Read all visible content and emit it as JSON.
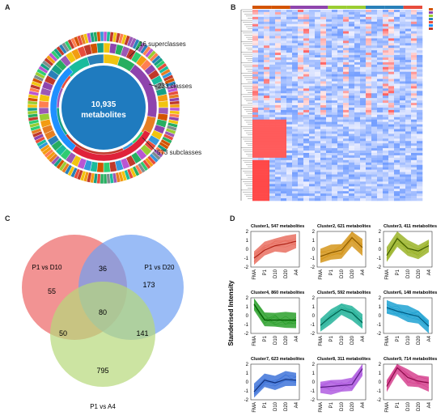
{
  "panels": {
    "a": {
      "label": "A",
      "center_count": "10,935",
      "center_unit": "metabolites",
      "annotations": [
        "16 superclasses",
        "233 classes",
        "573 subclasses"
      ],
      "colors": {
        "center": "#1f7bbf"
      }
    },
    "b": {
      "label": "B"
    },
    "c": {
      "label": "C",
      "sets": [
        {
          "name": "P1 vs D10",
          "color": "#f08080"
        },
        {
          "name": "P1 vs D20",
          "color": "#6fa0f2"
        },
        {
          "name": "P1 vs A4",
          "color": "#b7d97a"
        }
      ],
      "counts": {
        "only_d10": "55",
        "only_d20": "173",
        "only_a4": "795",
        "d10_d20": "36",
        "d10_a4": "50",
        "d20_a4": "141",
        "all": "80"
      }
    },
    "d": {
      "label": "D",
      "y_axis_label": "Standerised Intensity",
      "x_ticks": [
        "FMA",
        "P1",
        "D10",
        "D20",
        "A4"
      ],
      "y_ticks": [
        "2",
        "1",
        "0",
        "-1",
        "-2"
      ],
      "clusters": [
        {
          "title": "Cluster1, 547 metabolites",
          "color": "#e97062",
          "line": "#b02418",
          "mean": [
            -1.0,
            -0.1,
            0.4,
            0.6,
            0.9
          ]
        },
        {
          "title": "Cluster2, 621 metabolites",
          "color": "#d5961c",
          "line": "#8a5a00",
          "mean": [
            -0.8,
            -0.4,
            -0.1,
            1.3,
            0.2
          ]
        },
        {
          "title": "Cluster3, 411 metabolites",
          "color": "#9bb429",
          "line": "#3f5a00",
          "mean": [
            -0.7,
            1.2,
            0.1,
            -0.2,
            0.4
          ]
        },
        {
          "title": "Cluster4, 860 metabolites",
          "color": "#2ca02c",
          "line": "#005a00",
          "mean": [
            1.3,
            -0.5,
            -0.5,
            -0.5,
            -0.5
          ]
        },
        {
          "title": "Cluster5, 592 metabolites",
          "color": "#25b39a",
          "line": "#00604e",
          "mean": [
            -1.1,
            -0.1,
            0.7,
            0.3,
            -0.8
          ]
        },
        {
          "title": "Cluster6, 148 metabolites",
          "color": "#1fa2d2",
          "line": "#005a80",
          "mean": [
            0.9,
            0.5,
            0.2,
            -0.1,
            -1.2
          ]
        },
        {
          "title": "Cluster7, 623 metabolites",
          "color": "#3f74d9",
          "line": "#10307a",
          "mean": [
            -1.1,
            0.2,
            -0.1,
            0.3,
            0.2
          ]
        },
        {
          "title": "Cluster8, 311 metabolites",
          "color": "#b05de0",
          "line": "#5a1c85",
          "mean": [
            -0.6,
            -0.5,
            -0.4,
            -0.3,
            1.5
          ]
        },
        {
          "title": "Cluster9, 714 metabolites",
          "color": "#d6438f",
          "line": "#8a0c4a",
          "mean": [
            -0.5,
            1.6,
            0.5,
            0.1,
            -0.1
          ]
        }
      ]
    }
  }
}
